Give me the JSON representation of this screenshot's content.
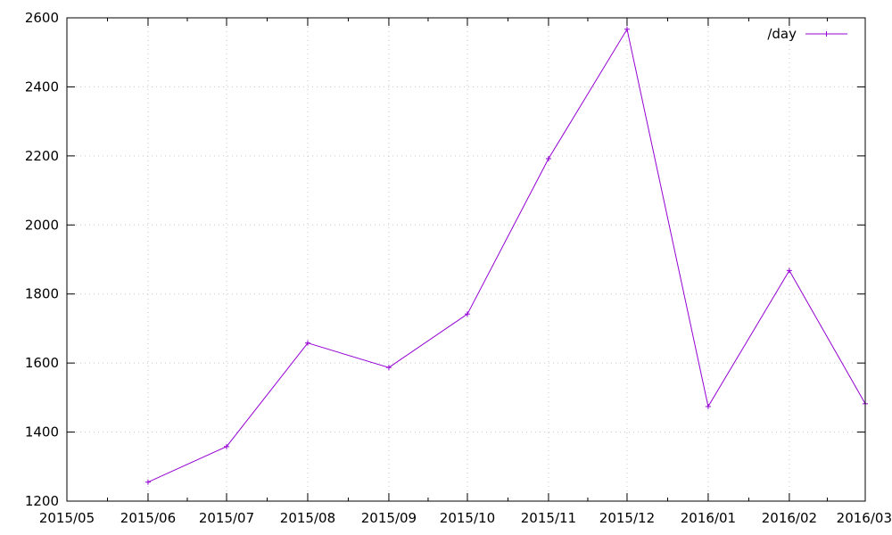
{
  "chart_data": {
    "type": "line",
    "title": "",
    "xlabel": "",
    "ylabel": "",
    "x_axis": {
      "type": "date",
      "range": [
        "2015-05-01",
        "2016-03-01"
      ],
      "tick_labels": [
        "2015/05",
        "2015/06",
        "2015/07",
        "2015/08",
        "2015/09",
        "2015/10",
        "2015/11",
        "2015/12",
        "2016/01",
        "2016/02",
        "2016/03"
      ]
    },
    "y_axis": {
      "range": [
        1200,
        2600
      ],
      "ticks": [
        1200,
        1400,
        1600,
        1800,
        2000,
        2200,
        2400,
        2600
      ]
    },
    "grid": true,
    "legend": "top-right",
    "series": [
      {
        "name": "/day",
        "color": "#9400d3",
        "marker": "plus",
        "points": [
          {
            "x": "2015-06-01",
            "y": 1255
          },
          {
            "x": "2015-07-01",
            "y": 1358
          },
          {
            "x": "2015-08-01",
            "y": 1658
          },
          {
            "x": "2015-09-01",
            "y": 1587
          },
          {
            "x": "2015-10-01",
            "y": 1742
          },
          {
            "x": "2015-11-01",
            "y": 2192
          },
          {
            "x": "2015-12-01",
            "y": 2567
          },
          {
            "x": "2016-01-01",
            "y": 1474
          },
          {
            "x": "2016-02-01",
            "y": 1868
          },
          {
            "x": "2016-03-01",
            "y": 1482
          }
        ]
      }
    ]
  }
}
